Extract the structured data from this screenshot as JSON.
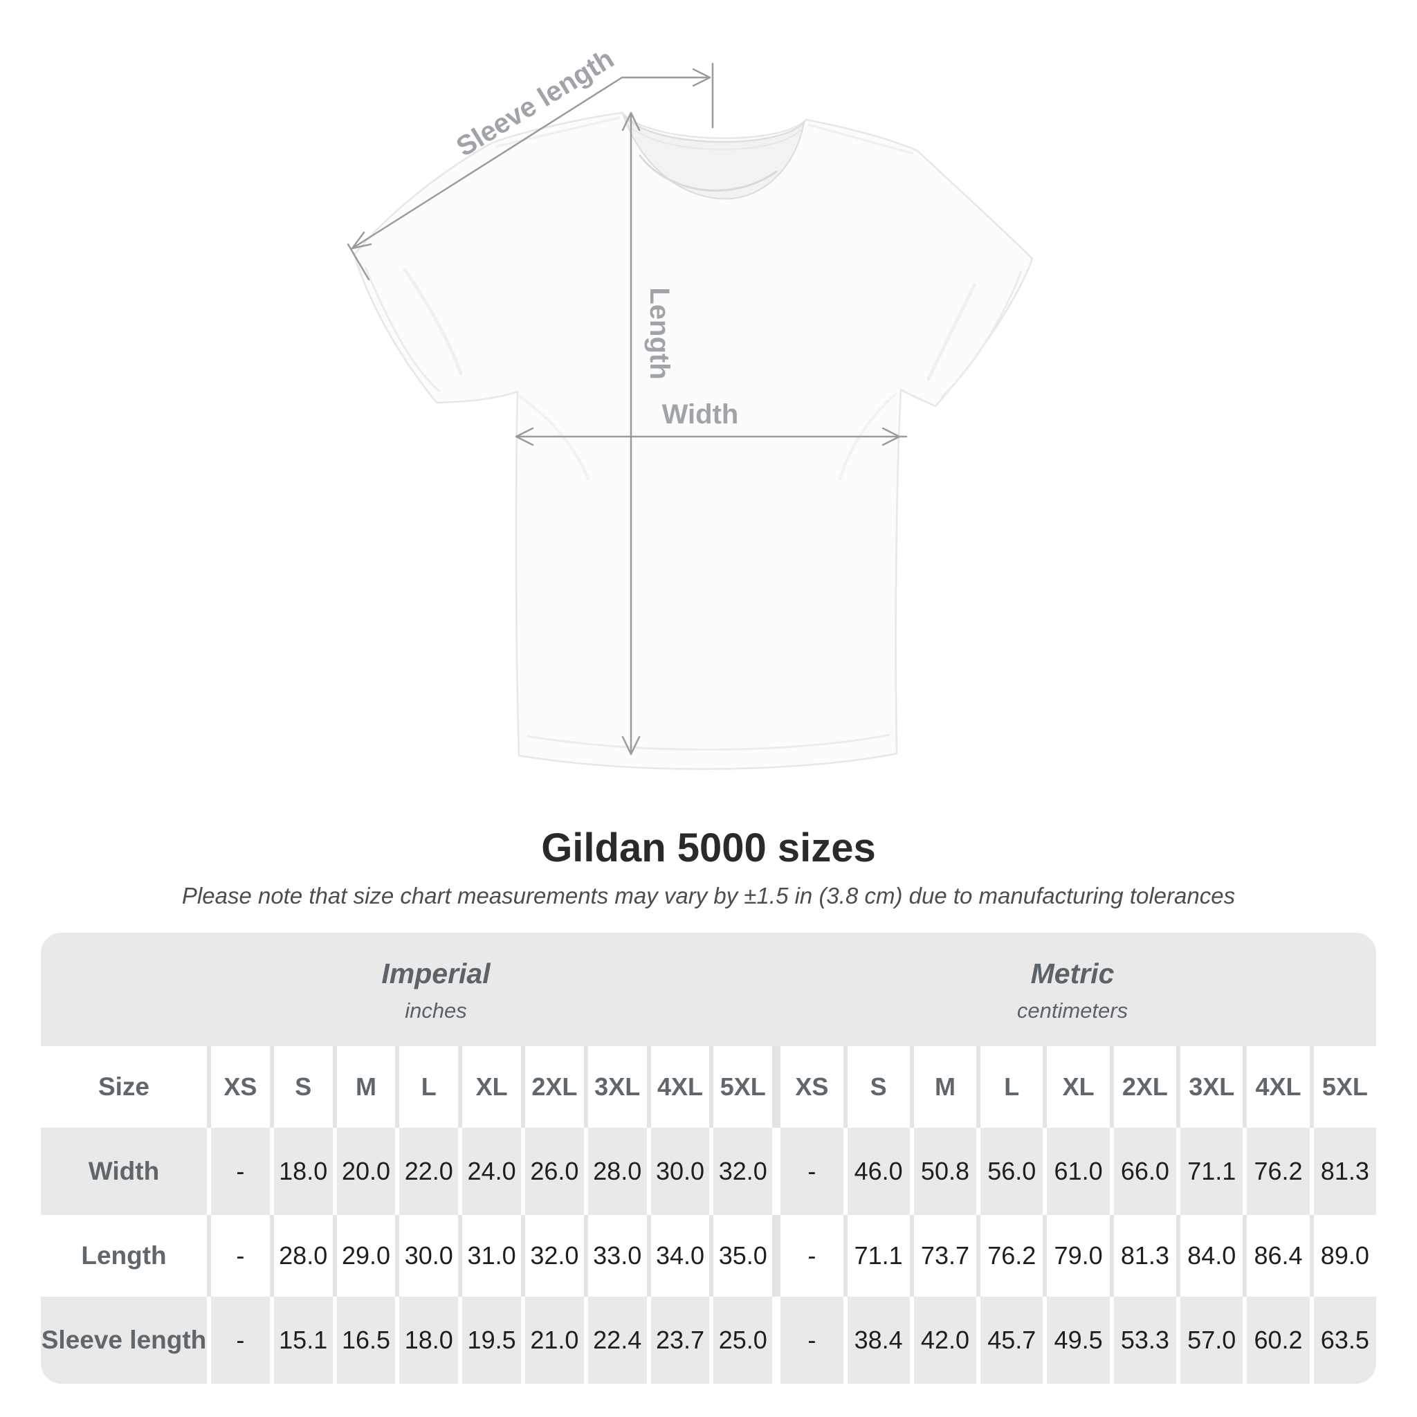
{
  "figure": {
    "labels": {
      "sleeve_length": "Sleeve length",
      "length": "Length",
      "width": "Width"
    }
  },
  "header": {
    "title": "Gildan 5000 sizes",
    "subtitle": "Please note that size chart measurements may vary by ±1.5 in (3.8 cm) due to manufacturing tolerances"
  },
  "table": {
    "groups": [
      {
        "label": "Imperial",
        "unit": "inches"
      },
      {
        "label": "Metric",
        "unit": "centimeters"
      }
    ],
    "size_header": "Size",
    "sizes": [
      "XS",
      "S",
      "M",
      "L",
      "XL",
      "2XL",
      "3XL",
      "4XL",
      "5XL"
    ],
    "rows": [
      {
        "label": "Width",
        "imperial": [
          "-",
          "18.0",
          "20.0",
          "22.0",
          "24.0",
          "26.0",
          "28.0",
          "30.0",
          "32.0"
        ],
        "metric": [
          "-",
          "46.0",
          "50.8",
          "56.0",
          "61.0",
          "66.0",
          "71.1",
          "76.2",
          "81.3"
        ]
      },
      {
        "label": "Length",
        "imperial": [
          "-",
          "28.0",
          "29.0",
          "30.0",
          "31.0",
          "32.0",
          "33.0",
          "34.0",
          "35.0"
        ],
        "metric": [
          "-",
          "71.1",
          "73.7",
          "76.2",
          "79.0",
          "81.3",
          "84.0",
          "86.4",
          "89.0"
        ]
      },
      {
        "label": "Sleeve length",
        "imperial": [
          "-",
          "15.1",
          "16.5",
          "18.0",
          "19.5",
          "21.0",
          "22.4",
          "23.7",
          "25.0"
        ],
        "metric": [
          "-",
          "38.4",
          "42.0",
          "45.7",
          "49.5",
          "53.3",
          "57.0",
          "60.2",
          "63.5"
        ]
      }
    ]
  },
  "colors": {
    "table_gray": "#e9e9e9",
    "separator_gray": "#e4e4e4",
    "header_text": "#5f666c",
    "number_text": "#1e1e1e",
    "annotation_gray": "#9b9b9b",
    "dim_label_gray": "#a0a4a8"
  },
  "chart_data": {
    "type": "table",
    "title": "Gildan 5000 sizes",
    "note": "Please note that size chart measurements may vary by ±1.5 in (3.8 cm) due to manufacturing tolerances",
    "units": {
      "imperial": "inches",
      "metric": "centimeters"
    },
    "columns": [
      "XS",
      "S",
      "M",
      "L",
      "XL",
      "2XL",
      "3XL",
      "4XL",
      "5XL"
    ],
    "rows_imperial": {
      "Width": [
        null,
        18.0,
        20.0,
        22.0,
        24.0,
        26.0,
        28.0,
        30.0,
        32.0
      ],
      "Length": [
        null,
        28.0,
        29.0,
        30.0,
        31.0,
        32.0,
        33.0,
        34.0,
        35.0
      ],
      "Sleeve length": [
        null,
        15.1,
        16.5,
        18.0,
        19.5,
        21.0,
        22.4,
        23.7,
        25.0
      ]
    },
    "rows_metric": {
      "Width": [
        null,
        46.0,
        50.8,
        56.0,
        61.0,
        66.0,
        71.1,
        76.2,
        81.3
      ],
      "Length": [
        null,
        71.1,
        73.7,
        76.2,
        79.0,
        81.3,
        84.0,
        86.4,
        89.0
      ],
      "Sleeve length": [
        null,
        38.4,
        42.0,
        45.7,
        49.5,
        53.3,
        57.0,
        60.2,
        63.5
      ]
    }
  }
}
